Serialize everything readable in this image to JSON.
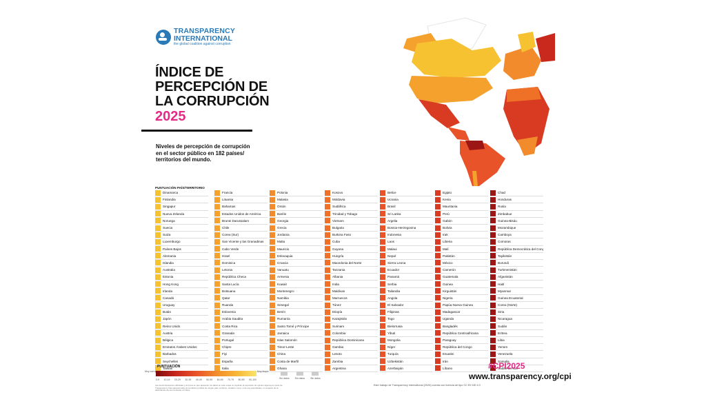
{
  "org": {
    "name_line1": "TRANSPARENCY",
    "name_line2": "INTERNATIONAL",
    "tagline": "the global coalition against corruption"
  },
  "title": "ÍNDICE DE PERCEPCIÓN DE LA CORRUPCIÓN",
  "year": "2025",
  "subtitle": "Niveles de percepción de corrupción en el sector público en 182 países/ territorios del mundo.",
  "table_header": "PUNTUACIÓN PAÍS/TERRITORIO",
  "colors": {
    "accent_pink": "#e22a86",
    "brand_blue": "#2a7ab8"
  },
  "columns": [
    {
      "color": "#f6c232",
      "countries": [
        "Dinamarca",
        "Finlandia",
        "Singapur",
        "Nueva Zelanda",
        "Noruega",
        "Suecia",
        "Suiza",
        "Luxemburgo",
        "Países Bajos",
        "Alemania",
        "Islandia",
        "Australia",
        "Estonia",
        "Hong Kong",
        "Irlanda",
        "Canadá",
        "Uruguay",
        "Bután",
        "Japón",
        "Reino Unido",
        "Austria",
        "Bélgica",
        "Emiratos Árabes Unidos",
        "Barbados",
        "Seychelles",
        "Taiwán"
      ]
    },
    {
      "color": "#f4a12e",
      "countries": [
        "Francia",
        "Lituania",
        "Bahamas",
        "Estados Unidos de América",
        "Brunei Darussalam",
        "Chile",
        "Corea (Sur)",
        "San Vicente y las Granadinas",
        "Cabo Verde",
        "Israel",
        "Dominica",
        "Letonia",
        "República Checa",
        "Santa Lucía",
        "Botsuana",
        "Qatar",
        "Ruanda",
        "Eslovenia",
        "Arabia Saudita",
        "Costa Rica",
        "Granada",
        "Portugal",
        "Chipre",
        "Fiyi",
        "España",
        "Italia"
      ]
    },
    {
      "color": "#f28b2b",
      "countries": [
        "Polonia",
        "Malasia",
        "Omán",
        "Baréin",
        "Georgia",
        "Grecia",
        "Jordania",
        "Malta",
        "Mauricio",
        "Eslovaquia",
        "Croacia",
        "Vanuatu",
        "Armenia",
        "Kuwait",
        "Montenegro",
        "Namibia",
        "Senegal",
        "Benín",
        "Rumanía",
        "Santo Tomé y Príncipe",
        "Jamaica",
        "Islas Salomón",
        "Timor-Leste",
        "China",
        "Costa de Marfil",
        "Ghana"
      ]
    },
    {
      "color": "#ee7127",
      "countries": [
        "Kosovo",
        "Moldavia",
        "Sudáfrica",
        "Trinidad y Tobago",
        "Vietnam",
        "Bulgaria",
        "Burkina Faso",
        "Cuba",
        "Guyana",
        "Hungría",
        "Macedonia del Norte",
        "Tanzania",
        "Albania",
        "India",
        "Maldivas",
        "Marruecos",
        "Túnez",
        "Etiopía",
        "Kazajistán",
        "Surinam",
        "Colombia",
        "República Dominicana",
        "Gambia",
        "Lesoto",
        "Zambia",
        "Argentina"
      ]
    },
    {
      "color": "#e8532a",
      "countries": [
        "Belice",
        "Ucrania",
        "Brasil",
        "Sri Lanka",
        "Argelia",
        "Bosnia-Herzegovina",
        "Indonesia",
        "Laos",
        "Malaui",
        "Nepal",
        "Sierra Leona",
        "Ecuador",
        "Panamá",
        "Serbia",
        "Tailandia",
        "Angola",
        "El Salvador",
        "Filipinas",
        "Togo",
        "Bielorrusia",
        "Yibuti",
        "Mongolia",
        "Níger",
        "Turquía",
        "Uzbekistán",
        "Azerbaiyán"
      ]
    },
    {
      "color": "#d83a22",
      "countries": [
        "Egipto",
        "Kenia",
        "Mauritania",
        "Perú",
        "Gabón",
        "Bolivia",
        "Irak",
        "Liberia",
        "Malí",
        "Pakistán",
        "México",
        "Camerún",
        "Guatemala",
        "Guinea",
        "Kirguistán",
        "Nigeria",
        "Papúa Nueva Guinea",
        "Madagascar",
        "Uganda",
        "Bangladés",
        "República Centroafricana",
        "Paraguay",
        "República del Congo",
        "Esuatini",
        "Irán",
        "Líbano"
      ]
    },
    {
      "color": "#9c1616",
      "countries": [
        "Chad",
        "Honduras",
        "Rusia",
        "Zimbabue",
        "Guinea-Bisáu",
        "Mozambique",
        "Camboya",
        "Comoras",
        "República Democrática del Congo",
        "Tayikistán",
        "Burundi",
        "Turkmenistán",
        "Afganistán",
        "Haití",
        "Myanmar",
        "Guinea Ecuatorial",
        "Corea (Norte)",
        "Siria",
        "Nicaragua",
        "Sudán",
        "Eritrea",
        "Libia",
        "Yemen",
        "Venezuela",
        "Somalia",
        "Sudán del Sur"
      ]
    }
  ],
  "legend": {
    "title": "PUNTUACIÓN",
    "low": "Muy corrupto",
    "high": "Muy limpio",
    "ticks": [
      "0-9",
      "10-19",
      "20-29",
      "30-39",
      "40-49",
      "50-59",
      "60-69",
      "70-79",
      "80-89",
      "90-100"
    ],
    "na1": "Sin datos",
    "na2": "Sin datos",
    "na3": "Sin datos"
  },
  "footnote": "Las denominaciones utilizadas y la forma en que aparecen los datos en este mapa no implican la expresión de opinión alguna por parte de Transparency International sobre la condición jurídica de ningún país, territorio, ciudad o zona, ni de sus autoridades, ni respecto de la delimitación de sus fronteras o límites.",
  "hashtag": "#CPI2025",
  "url": "www.transparency.org/cpi",
  "license": "Este trabajo de Transparency International (2026) cuenta con licencia de tipo CC BY-ND 4.0"
}
